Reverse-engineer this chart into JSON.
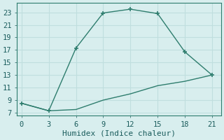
{
  "line1_x": [
    0,
    3,
    6,
    9,
    12,
    15,
    18,
    21
  ],
  "line1_y": [
    8.5,
    7.3,
    17.3,
    22.9,
    23.5,
    22.8,
    16.7,
    13.0
  ],
  "line2_x": [
    0,
    3,
    6,
    9,
    12,
    15,
    18,
    21
  ],
  "line2_y": [
    8.5,
    7.3,
    7.5,
    9.0,
    10.0,
    11.3,
    12.0,
    13.0
  ],
  "line_color": "#2e7d6e",
  "bg_color": "#d8eeee",
  "grid_color": "#c0dede",
  "xlabel": "Humidex (Indice chaleur)",
  "xlim": [
    -0.5,
    22
  ],
  "ylim": [
    6.5,
    24.5
  ],
  "xticks": [
    0,
    3,
    6,
    9,
    12,
    15,
    18,
    21
  ],
  "yticks": [
    7,
    9,
    11,
    13,
    15,
    17,
    19,
    21,
    23
  ],
  "xlabel_fontsize": 8,
  "tick_fontsize": 7.5
}
